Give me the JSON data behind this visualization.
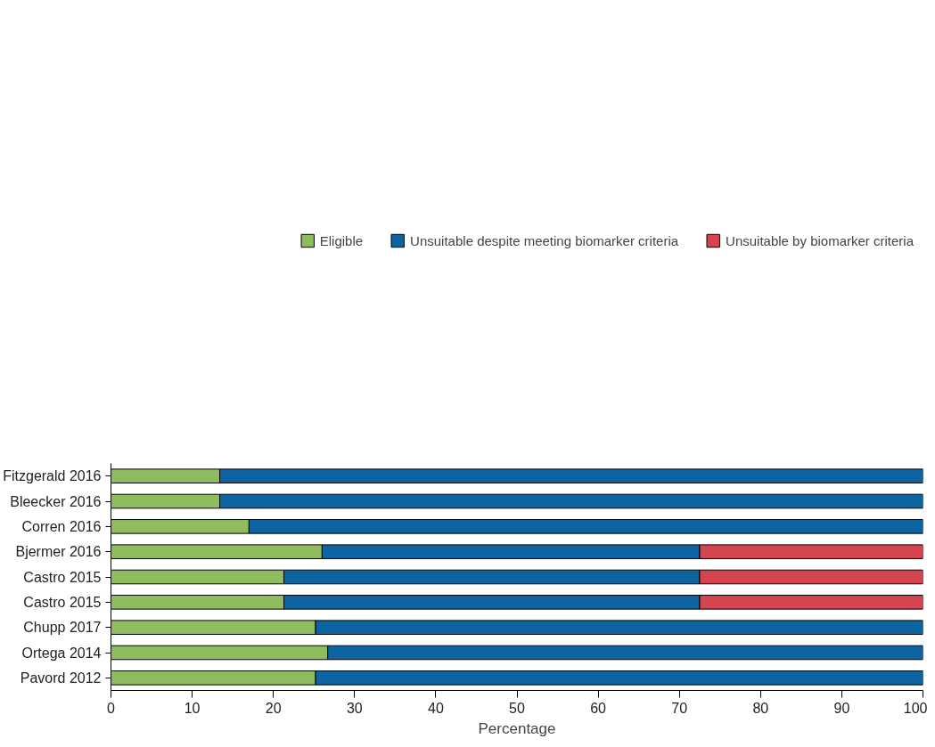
{
  "chart_data": {
    "type": "bar",
    "orientation": "horizontal",
    "stacked": true,
    "xlabel": "Percentage",
    "categories": [
      "Fitzgerald 2016",
      "Bleecker 2016",
      "Corren 2016",
      "Bjermer 2016",
      "Castro 2015",
      "Castro 2015",
      "Chupp 2017",
      "Ortega 2014",
      "Pavord 2012"
    ],
    "series": [
      {
        "name": "Eligible",
        "color": "#8fbc5f",
        "values": [
          13.4,
          13.4,
          17,
          26,
          21.3,
          21.3,
          25.2,
          26.7,
          25.2
        ]
      },
      {
        "name": "Unsuitable despite meeting biomarker criteria",
        "color": "#0e64a0",
        "values": [
          86.6,
          86.6,
          83,
          46.5,
          51.2,
          51.2,
          74.8,
          73.3,
          74.8
        ]
      },
      {
        "name": "Unsuitable by biomarker criteria",
        "color": "#d44550",
        "values": [
          null,
          null,
          null,
          27.5,
          27.5,
          27.5,
          null,
          null,
          null
        ]
      }
    ],
    "xlim": [
      0,
      100
    ],
    "xticks": [
      0,
      10,
      20,
      30,
      40,
      50,
      60,
      70,
      80,
      90,
      100
    ],
    "grid": false,
    "legend": "top"
  }
}
